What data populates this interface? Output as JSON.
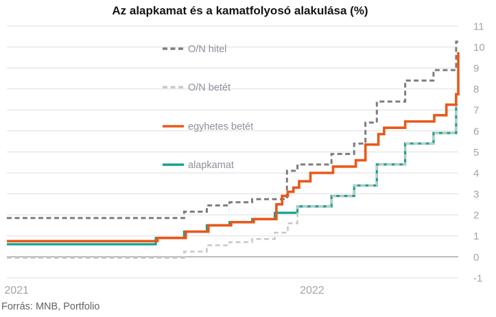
{
  "title": "Az alapkamat és a kamatfolyosó alakulása (%)",
  "source": "Forrás: MNB, Portfolio",
  "colors": {
    "on_hitel": "#7d7d7d",
    "on_betet": "#c9c9c9",
    "egyhetes_betet": "#e8581a",
    "alapkamat": "#13a28c",
    "grid": "#dedede",
    "zero_line": "#9e9e9e",
    "tick_text": "#a0a4a8",
    "legend_text": "#8b909a"
  },
  "y_axis": {
    "min": -1,
    "max": 11,
    "step": 1,
    "tick_labels": [
      "11",
      "10",
      "9",
      "8",
      "7",
      "6",
      "5",
      "4",
      "3",
      "2",
      "1",
      "0",
      "-1"
    ]
  },
  "x_axis": {
    "labels": [
      {
        "text": "2021",
        "date": "2021-01-01"
      },
      {
        "text": "2022",
        "date": "2022-01-01"
      }
    ]
  },
  "legend": {
    "items": [
      {
        "label": "O/N hitel",
        "series": "on_hitel",
        "dashed": true
      },
      {
        "label": "O/N betét",
        "series": "on_betet",
        "dashed": true
      },
      {
        "label": "egyhetes betét",
        "series": "egyhetes_betet",
        "dashed": false
      },
      {
        "label": "alapkamat",
        "series": "alapkamat",
        "dashed": false
      }
    ]
  },
  "chart_data": {
    "type": "line",
    "step": true,
    "title": "Az alapkamat és a kamatfolyosó alakulása (%)",
    "ylim": [
      -1,
      11
    ],
    "grid": "horizontal",
    "legend_position": "inside-upper-left",
    "time_range": {
      "start": "2020-12-20",
      "end": "2022-07-08"
    },
    "unit": "%",
    "series": [
      {
        "name": "O/N hitel",
        "color_key": "on_hitel",
        "dashed": true,
        "width": 3,
        "points": [
          [
            "2020-12-20",
            1.85
          ],
          [
            "2021-07-27",
            2.15
          ],
          [
            "2021-08-24",
            2.45
          ],
          [
            "2021-09-21",
            2.6
          ],
          [
            "2021-10-19",
            2.75
          ],
          [
            "2021-12-01",
            4.1
          ],
          [
            "2021-12-14",
            4.4
          ],
          [
            "2022-01-25",
            4.9
          ],
          [
            "2022-02-22",
            5.4
          ],
          [
            "2022-03-08",
            6.4
          ],
          [
            "2022-03-22",
            7.4
          ],
          [
            "2022-04-26",
            8.4
          ],
          [
            "2022-05-31",
            8.9
          ],
          [
            "2022-06-28",
            10.25
          ]
        ]
      },
      {
        "name": "O/N betét",
        "color_key": "on_betet",
        "dashed": true,
        "width": 2.6,
        "points": [
          [
            "2020-12-20",
            -0.05
          ],
          [
            "2021-07-27",
            0.25
          ],
          [
            "2021-08-24",
            0.55
          ],
          [
            "2021-09-21",
            0.7
          ],
          [
            "2021-10-19",
            0.85
          ],
          [
            "2021-11-16",
            1.15
          ],
          [
            "2021-12-02",
            1.6
          ],
          [
            "2021-12-14",
            2.4
          ],
          [
            "2022-01-25",
            2.9
          ],
          [
            "2022-02-22",
            3.4
          ],
          [
            "2022-03-22",
            4.4
          ],
          [
            "2022-04-26",
            5.4
          ],
          [
            "2022-05-31",
            5.9
          ],
          [
            "2022-06-28",
            7.25
          ]
        ]
      },
      {
        "name": "egyhetes betét",
        "color_key": "egyhetes_betet",
        "dashed": false,
        "width": 3.6,
        "points": [
          [
            "2020-12-20",
            0.75
          ],
          [
            "2021-06-24",
            0.9
          ],
          [
            "2021-07-29",
            1.2
          ],
          [
            "2021-08-26",
            1.5
          ],
          [
            "2021-09-23",
            1.65
          ],
          [
            "2021-10-21",
            1.8
          ],
          [
            "2021-11-18",
            2.5
          ],
          [
            "2021-11-25",
            2.9
          ],
          [
            "2021-12-02",
            3.1
          ],
          [
            "2021-12-09",
            3.3
          ],
          [
            "2021-12-16",
            3.6
          ],
          [
            "2021-12-30",
            4.0
          ],
          [
            "2022-01-27",
            4.3
          ],
          [
            "2022-02-24",
            4.6
          ],
          [
            "2022-03-08",
            5.35
          ],
          [
            "2022-03-24",
            5.85
          ],
          [
            "2022-03-31",
            6.15
          ],
          [
            "2022-04-26",
            6.45
          ],
          [
            "2022-06-01",
            6.75
          ],
          [
            "2022-06-16",
            7.25
          ],
          [
            "2022-06-28",
            7.75
          ],
          [
            "2022-07-06",
            9.75
          ]
        ]
      },
      {
        "name": "alapkamat",
        "color_key": "alapkamat",
        "dashed": false,
        "width": 3.2,
        "points": [
          [
            "2020-12-20",
            0.6
          ],
          [
            "2021-06-22",
            0.9
          ],
          [
            "2021-07-27",
            1.2
          ],
          [
            "2021-08-24",
            1.5
          ],
          [
            "2021-09-21",
            1.65
          ],
          [
            "2021-10-19",
            1.8
          ],
          [
            "2021-11-16",
            2.1
          ],
          [
            "2021-12-14",
            2.4
          ],
          [
            "2022-01-25",
            2.9
          ],
          [
            "2022-02-22",
            3.4
          ],
          [
            "2022-03-22",
            4.4
          ],
          [
            "2022-04-26",
            5.4
          ],
          [
            "2022-05-31",
            5.9
          ],
          [
            "2022-06-28",
            7.75
          ]
        ]
      }
    ]
  }
}
